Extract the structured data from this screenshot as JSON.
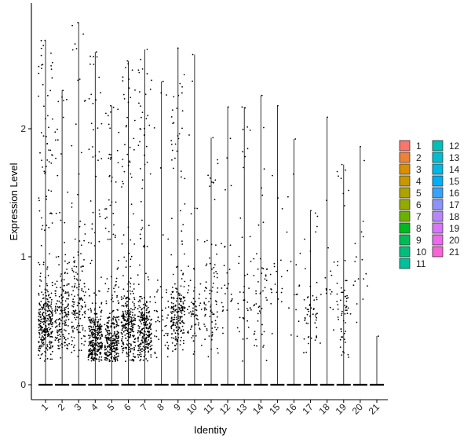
{
  "chart_data": {
    "type": "violin-jitter",
    "title": "",
    "xlabel": "Identity",
    "ylabel": "Expression Level",
    "ylim": [
      -0.1,
      2.85
    ],
    "yticks": [
      0,
      1,
      2
    ],
    "grid": false,
    "legend_position": "right",
    "categories": [
      "1",
      "2",
      "3",
      "4",
      "5",
      "6",
      "7",
      "8",
      "9",
      "10",
      "11",
      "12",
      "13",
      "14",
      "15",
      "16",
      "17",
      "18",
      "19",
      "20",
      "21"
    ],
    "series": [
      {
        "name": "1",
        "color": "#F8766D",
        "max": 2.69,
        "density": 1.0,
        "spread": 0.25,
        "center": 0.48
      },
      {
        "name": "2",
        "color": "#EC8239",
        "max": 2.3,
        "density": 0.55,
        "spread": 0.3,
        "center": 0.55
      },
      {
        "name": "3",
        "color": "#DB8E00",
        "max": 2.83,
        "density": 0.45,
        "spread": 0.35,
        "center": 0.6
      },
      {
        "name": "4",
        "color": "#C79800",
        "max": 2.6,
        "density": 0.95,
        "spread": 0.25,
        "center": 0.35
      },
      {
        "name": "5",
        "color": "#AFA100",
        "max": 2.18,
        "density": 0.9,
        "spread": 0.25,
        "center": 0.35
      },
      {
        "name": "6",
        "color": "#93AA00",
        "max": 2.53,
        "density": 0.85,
        "spread": 0.28,
        "center": 0.45
      },
      {
        "name": "7",
        "color": "#6BB100",
        "max": 2.62,
        "density": 0.85,
        "spread": 0.22,
        "center": 0.4
      },
      {
        "name": "8",
        "color": "#00B81F",
        "max": 2.37,
        "density": 0.15,
        "spread": 0.3,
        "center": 0.5
      },
      {
        "name": "9",
        "color": "#00BC56",
        "max": 2.63,
        "density": 0.65,
        "spread": 0.25,
        "center": 0.55
      },
      {
        "name": "10",
        "color": "#00BF7D",
        "max": 2.58,
        "density": 0.2,
        "spread": 0.3,
        "center": 0.6
      },
      {
        "name": "11",
        "color": "#00C19C",
        "max": 1.93,
        "density": 0.25,
        "spread": 0.3,
        "center": 0.6
      },
      {
        "name": "12",
        "color": "#00C0B7",
        "max": 2.17,
        "density": 0.08,
        "spread": 0.4,
        "center": 0.8
      },
      {
        "name": "13",
        "color": "#00BDD0",
        "max": 2.17,
        "density": 0.12,
        "spread": 0.35,
        "center": 0.55
      },
      {
        "name": "14",
        "color": "#00B7E5",
        "max": 2.26,
        "density": 0.15,
        "spread": 0.35,
        "center": 0.7
      },
      {
        "name": "15",
        "color": "#00AEF6",
        "max": 2.18,
        "density": 0.06,
        "spread": 0.35,
        "center": 0.7
      },
      {
        "name": "16",
        "color": "#35A2FF",
        "max": 1.92,
        "density": 0.05,
        "spread": 0.35,
        "center": 0.7
      },
      {
        "name": "17",
        "color": "#8B93FF",
        "max": 1.36,
        "density": 0.15,
        "spread": 0.2,
        "center": 0.55
      },
      {
        "name": "18",
        "color": "#B984FF",
        "max": 2.09,
        "density": 0.05,
        "spread": 0.35,
        "center": 0.75
      },
      {
        "name": "19",
        "color": "#D874FD",
        "max": 1.72,
        "density": 0.18,
        "spread": 0.3,
        "center": 0.55
      },
      {
        "name": "20",
        "color": "#ED68ED",
        "max": 1.86,
        "density": 0.05,
        "spread": 0.35,
        "center": 0.9
      },
      {
        "name": "21",
        "color": "#FA62D9",
        "max": 0.38,
        "density": 0.0,
        "spread": 0.1,
        "center": 0.3
      }
    ]
  }
}
